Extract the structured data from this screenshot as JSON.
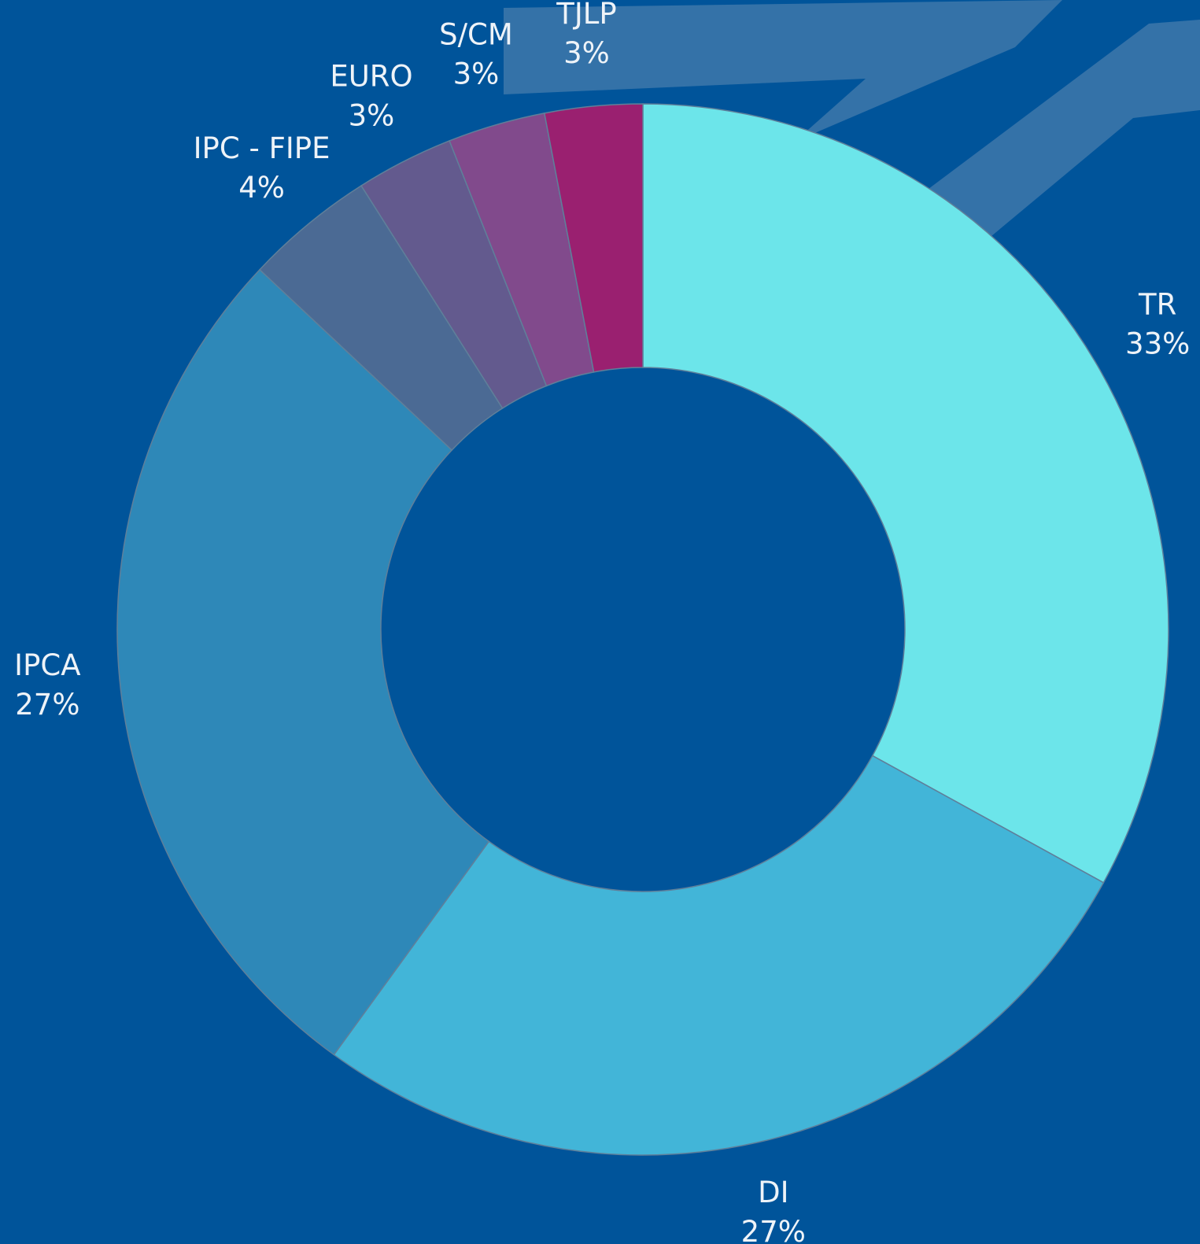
{
  "chart_data": {
    "type": "donut",
    "categories": [
      "TR",
      "DI",
      "IPCA",
      "IPC - FIPE",
      "EURO",
      "S/CM",
      "TJLP"
    ],
    "values": [
      33,
      27,
      27,
      4,
      3,
      3,
      3
    ],
    "value_labels": [
      "33%",
      "27%",
      "27%",
      "4%",
      "3%",
      "3%",
      "3%"
    ],
    "colors": [
      "#6ce5ea",
      "#42b5d8",
      "#2e88b8",
      "#4b6a94",
      "#635a8e",
      "#814a8c",
      "#9a2070"
    ]
  }
}
